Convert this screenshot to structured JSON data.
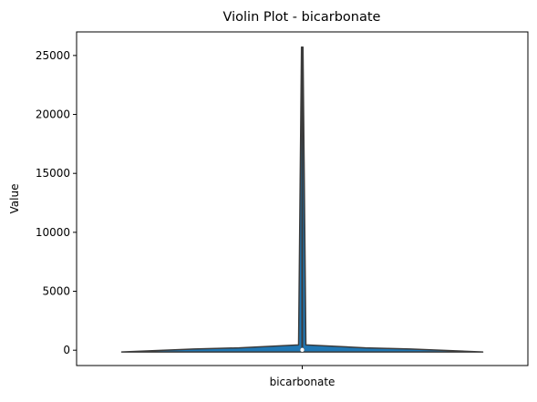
{
  "chart_data": {
    "type": "violin",
    "title": "Violin Plot - bicarbonate",
    "xlabel": "",
    "ylabel": "Value",
    "categories": [
      "bicarbonate"
    ],
    "ylim": [
      -1300,
      27000
    ],
    "yticks": [
      0,
      5000,
      10000,
      15000,
      20000,
      25000
    ],
    "grid": false,
    "legend": "none",
    "violin_color": "#1f77b4",
    "line_color": "#3b3b3b",
    "violins": [
      {
        "category": "bicarbonate",
        "whisker_min": -150,
        "whisker_max": 25700,
        "q1": 0,
        "q3": 150,
        "median": 30,
        "density_profile": [
          {
            "y": -150,
            "width": 1.0
          },
          {
            "y": 100,
            "width": 0.6
          },
          {
            "y": 200,
            "width": 0.35
          },
          {
            "y": 450,
            "width": 0.02
          },
          {
            "y": 25700,
            "width": 0.004
          }
        ]
      }
    ]
  }
}
